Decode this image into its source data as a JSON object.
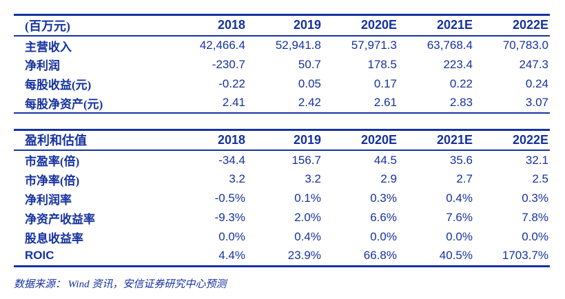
{
  "colors": {
    "navy": "#1532A0"
  },
  "table1": {
    "unit_label": "(百万元)",
    "columns": [
      "2018",
      "2019",
      "2020E",
      "2021E",
      "2022E"
    ],
    "rows": [
      {
        "label": "主营收入",
        "values": [
          "42,466.4",
          "52,941.8",
          "57,971.3",
          "63,768.4",
          "70,783.0"
        ]
      },
      {
        "label": "净利润",
        "values": [
          "-230.7",
          "50.7",
          "178.5",
          "223.4",
          "247.3"
        ]
      },
      {
        "label": "每股收益(元)",
        "values": [
          "-0.22",
          "0.05",
          "0.17",
          "0.22",
          "0.24"
        ]
      },
      {
        "label": "每股净资产(元)",
        "values": [
          "2.41",
          "2.42",
          "2.61",
          "2.83",
          "3.07"
        ]
      }
    ]
  },
  "table2": {
    "title": "盈利和估值",
    "columns": [
      "2018",
      "2019",
      "2020E",
      "2021E",
      "2022E"
    ],
    "rows": [
      {
        "label": "市盈率(倍)",
        "values": [
          "-34.4",
          "156.7",
          "44.5",
          "35.6",
          "32.1"
        ]
      },
      {
        "label": "市净率(倍)",
        "values": [
          "3.2",
          "3.2",
          "2.9",
          "2.7",
          "2.5"
        ]
      },
      {
        "label": "净利润率",
        "values": [
          "-0.5%",
          "0.1%",
          "0.3%",
          "0.4%",
          "0.3%"
        ]
      },
      {
        "label": "净资产收益率",
        "values": [
          "-9.3%",
          "2.0%",
          "6.6%",
          "7.6%",
          "7.8%"
        ]
      },
      {
        "label": "股息收益率",
        "values": [
          "0.0%",
          "0.4%",
          "0.0%",
          "0.0%",
          "0.0%"
        ]
      },
      {
        "label": "ROIC",
        "values": [
          "4.4%",
          "23.9%",
          "66.8%",
          "40.5%",
          "1703.7%"
        ]
      }
    ]
  },
  "footer": {
    "source": "数据来源： Wind 资讯，安信证券研究中心预测"
  }
}
